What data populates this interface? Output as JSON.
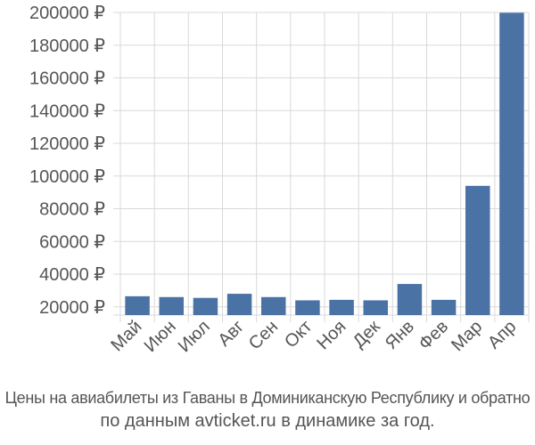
{
  "chart_data": {
    "type": "bar",
    "categories": [
      "Май",
      "Июн",
      "Июл",
      "Авг",
      "Сен",
      "Окт",
      "Ноя",
      "Дек",
      "Янв",
      "Фев",
      "Мар",
      "Апр"
    ],
    "values": [
      26500,
      26000,
      25500,
      28000,
      26000,
      24000,
      24300,
      24000,
      34000,
      24300,
      94000,
      199800
    ],
    "ylim": [
      15000,
      200000
    ],
    "yticks": [
      20000,
      40000,
      60000,
      80000,
      100000,
      120000,
      140000,
      160000,
      180000,
      200000
    ],
    "currency_suffix": " ₽",
    "grid": true,
    "bar_color": "#4a72a4",
    "grid_color": "#d9d9d9",
    "text_color": "#555555"
  },
  "caption": {
    "line1": "Цены на авиабилеты из Гаваны в Доминиканскую Республику и обратно",
    "line2": "по данным avticket.ru в динамике за год."
  }
}
